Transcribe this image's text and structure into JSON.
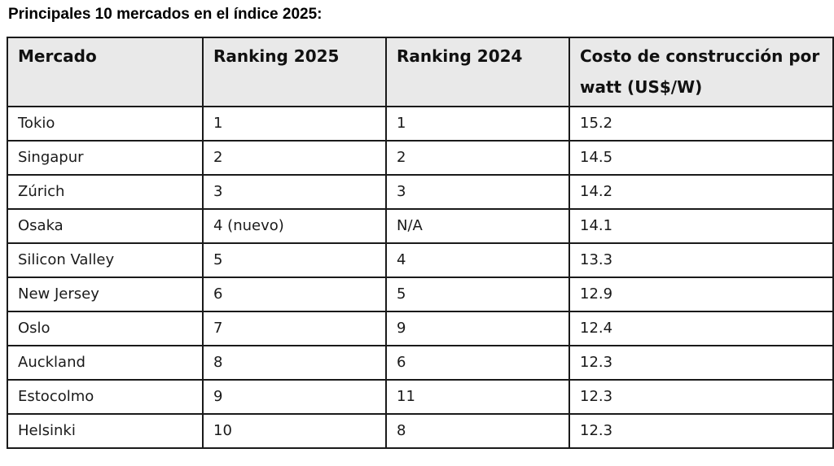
{
  "page": {
    "title": "Principales 10 mercados en el índice 2025:"
  },
  "colors": {
    "header_bg": "#e9e9e9",
    "border": "#1a1a1a"
  },
  "table": {
    "headers": [
      "Mercado",
      "Ranking 2025",
      "Ranking 2024",
      "Costo de construcción por watt (US$/W)"
    ],
    "rows": [
      [
        "Tokio",
        "1",
        "1",
        "15.2"
      ],
      [
        "Singapur",
        "2",
        "2",
        "14.5"
      ],
      [
        "Zúrich",
        "3",
        "3",
        "14.2"
      ],
      [
        "Osaka",
        "4 (nuevo)",
        "N/A",
        "14.1"
      ],
      [
        "Silicon Valley",
        "5",
        "4",
        "13.3"
      ],
      [
        "New Jersey",
        "6",
        "5",
        "12.9"
      ],
      [
        "Oslo",
        "7",
        "9",
        "12.4"
      ],
      [
        "Auckland",
        "8",
        "6",
        "12.3"
      ],
      [
        "Estocolmo",
        "9",
        "11",
        "12.3"
      ],
      [
        "Helsinki",
        "10",
        "8",
        "12.3"
      ]
    ]
  }
}
